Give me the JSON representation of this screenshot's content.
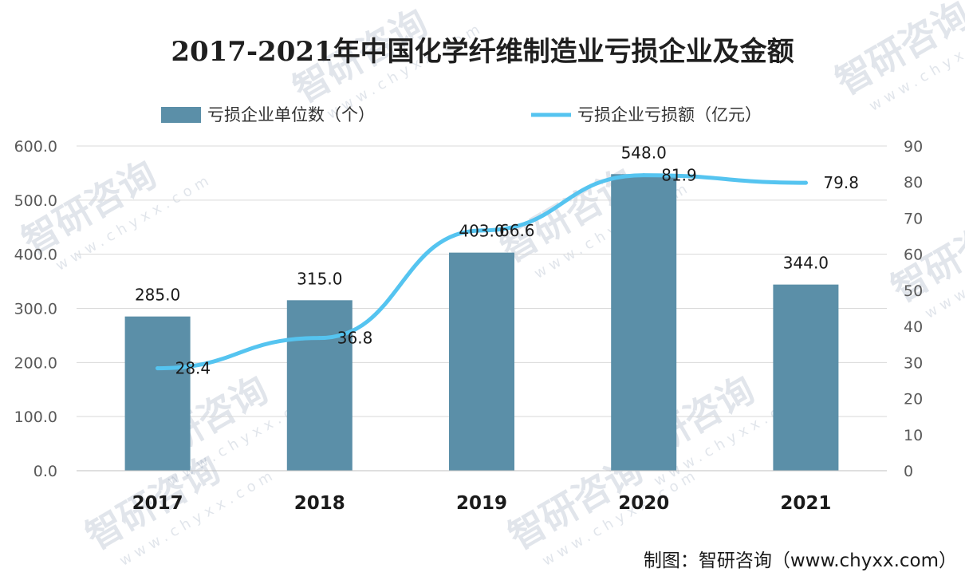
{
  "chart_data": {
    "type": "bar",
    "title": "2017-2021年中国化学纤维制造业亏损企业及金额",
    "categories": [
      "2017",
      "2018",
      "2019",
      "2020",
      "2021"
    ],
    "series": [
      {
        "name": "亏损企业单位数（个）",
        "type": "bar",
        "axis": "left",
        "values": [
          285.0,
          315.0,
          403.0,
          548.0,
          344.0
        ],
        "labels": [
          "285.0",
          "315.0",
          "403.0",
          "548.0",
          "344.0"
        ],
        "color": "#5B8FA8"
      },
      {
        "name": "亏损企业亏损额（亿元）",
        "type": "line",
        "axis": "right",
        "values": [
          28.4,
          36.8,
          66.6,
          81.9,
          79.8
        ],
        "labels": [
          "28.4",
          "36.8",
          "66.6",
          "81.9",
          "79.8"
        ],
        "color": "#55C4F0"
      }
    ],
    "y_left": {
      "ylim": [
        0,
        600
      ],
      "ticks": [
        "0.0",
        "100.0",
        "200.0",
        "300.0",
        "400.0",
        "500.0",
        "600.0"
      ]
    },
    "y_right": {
      "ylim": [
        0,
        90
      ],
      "ticks": [
        "0",
        "10",
        "20",
        "30",
        "40",
        "50",
        "60",
        "70",
        "80",
        "90"
      ]
    },
    "grid": true,
    "legend_position": "top"
  },
  "source_text": "制图：智研咨询（www.chyxx.com）",
  "watermark": {
    "brand": "智研咨询",
    "site": "www.chyxx.com"
  }
}
